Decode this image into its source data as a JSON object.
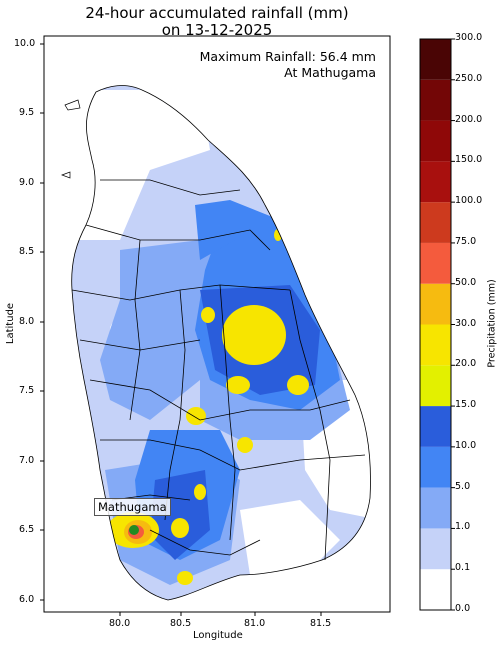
{
  "title_line1": "24-hour accumulated rainfall (mm)",
  "title_line2": "on 13-12-2025",
  "annotation_line1": "Maximum Rainfall: 56.4 mm",
  "annotation_line2": "At Mathugama",
  "xlabel": "Longitude",
  "ylabel": "Latitude",
  "xticks": [
    "80.0",
    "80.5",
    "81.0",
    "81.5"
  ],
  "yticks": [
    "10.0",
    "9.5",
    "9.0",
    "8.5",
    "8.0",
    "7.5",
    "7.0",
    "6.5",
    "6.0"
  ],
  "colorbar": {
    "label": "Precipitation (mm)",
    "ticks": [
      "0.0",
      "0.1",
      "1.0",
      "5.0",
      "10.0",
      "15.0",
      "20.0",
      "30.0",
      "50.0",
      "75.0",
      "100.0",
      "150.0",
      "200.0",
      "250.0",
      "300.0"
    ],
    "colors": [
      "#ffffff",
      "#c5d2f8",
      "#84aaf6",
      "#4285f4",
      "#2a5ddb",
      "#e3f000",
      "#f7e500",
      "#f6bb10",
      "#f45b3d",
      "#cd3a1e",
      "#a8100e",
      "#8f0808",
      "#730606",
      "#4a0505"
    ]
  },
  "location": {
    "name": "Mathugama",
    "lon": 80.14,
    "lat": 6.52,
    "marker_color": "#228b22"
  },
  "chart_data": {
    "type": "heatmap",
    "title": "24-hour accumulated rainfall (mm) on 13-12-2025",
    "xlabel": "Longitude",
    "ylabel": "Latitude",
    "xlim": [
      79.47,
      81.98
    ],
    "ylim": [
      5.92,
      10.04
    ],
    "max_value": 56.4,
    "max_location": "Mathugama",
    "units": "mm"
  }
}
